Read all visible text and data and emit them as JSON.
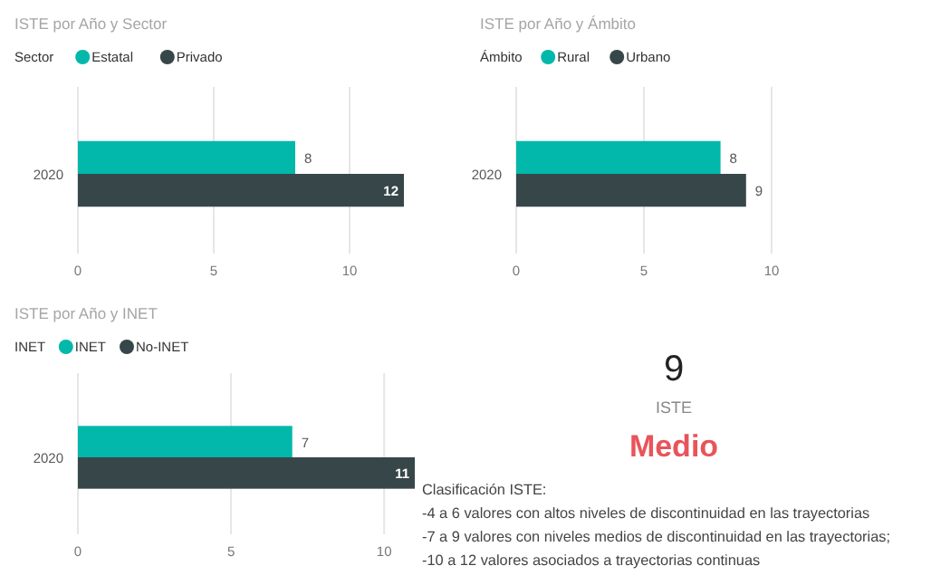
{
  "chart_data": [
    {
      "type": "bar",
      "orientation": "horizontal",
      "title": "ISTE por Año y Sector",
      "legend_title": "Sector",
      "legend": "top left",
      "categories": [
        "2020"
      ],
      "xlim": [
        0,
        12
      ],
      "xticks": [
        0,
        5,
        10
      ],
      "grid": "x",
      "data_labels": true,
      "series": [
        {
          "name": "Estatal",
          "color": "#01b8aa",
          "values": [
            8
          ]
        },
        {
          "name": "Privado",
          "color": "#374649",
          "values": [
            12
          ]
        }
      ]
    },
    {
      "type": "bar",
      "orientation": "horizontal",
      "title": "ISTE por Año y Ámbito",
      "legend_title": "Ámbito",
      "legend": "top left",
      "categories": [
        "2020"
      ],
      "xlim": [
        0,
        10
      ],
      "xticks": [
        0,
        5,
        10
      ],
      "grid": "x",
      "data_labels": true,
      "series": [
        {
          "name": "Rural",
          "color": "#01b8aa",
          "values": [
            8
          ]
        },
        {
          "name": "Urbano",
          "color": "#374649",
          "values": [
            9
          ]
        }
      ]
    },
    {
      "type": "bar",
      "orientation": "horizontal",
      "title": "ISTE por Año y INET",
      "legend_title": "INET",
      "legend": "top left",
      "categories": [
        "2020"
      ],
      "xlim": [
        0,
        11
      ],
      "xticks": [
        0,
        5,
        10
      ],
      "grid": "x",
      "data_labels": true,
      "series": [
        {
          "name": "INET",
          "color": "#01b8aa",
          "values": [
            7
          ]
        },
        {
          "name": "No-INET",
          "color": "#374649",
          "values": [
            11
          ]
        }
      ]
    },
    {
      "type": "other",
      "annotations": [
        "9",
        "ISTE",
        "Medio",
        "Clasificación ISTE:",
        "-4 a 6 valores con altos niveles de discontinuidad en las trayectorias",
        "-7 a 9 valores con niveles medios de discontinuidad en las trayectorias;",
        "-10 a 12 valores asociados a trayectorias continuas"
      ]
    }
  ]
}
